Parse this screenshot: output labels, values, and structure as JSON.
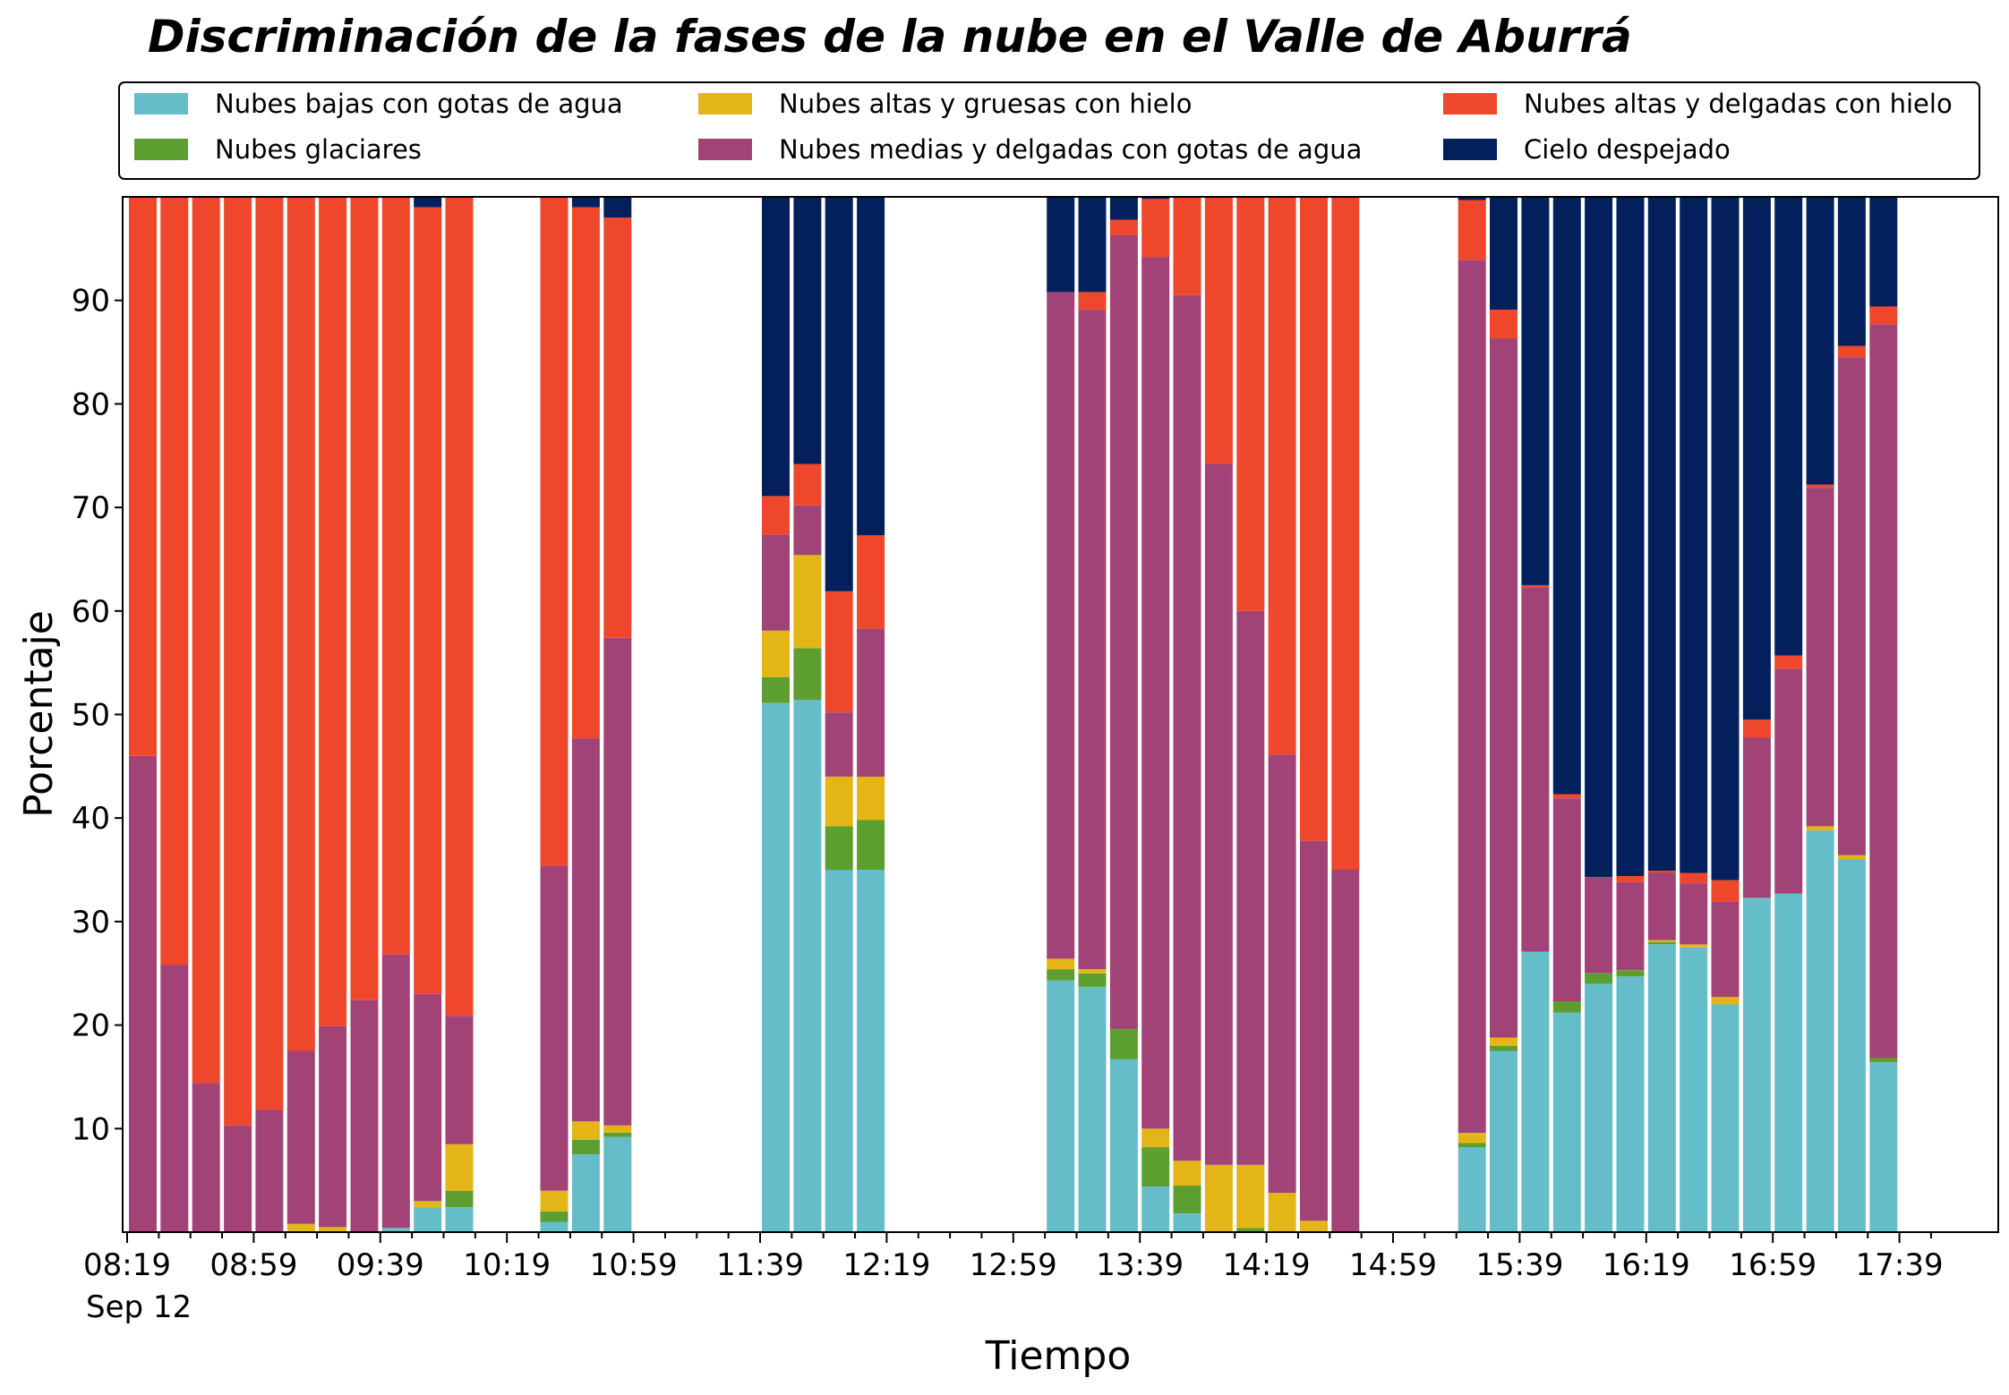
{
  "chart_data": {
    "type": "bar",
    "stacked": true,
    "title": "Discriminación de la fases de la nube en el Valle de Aburrá",
    "xlabel": "Tiempo",
    "ylabel": "Porcentaje",
    "ylim": [
      0,
      100
    ],
    "yticks": [
      10,
      20,
      30,
      40,
      50,
      60,
      70,
      80,
      90
    ],
    "xticklabels": [
      "08:19",
      "08:59",
      "09:39",
      "10:19",
      "10:59",
      "11:39",
      "12:19",
      "12:59",
      "13:39",
      "14:19",
      "14:59",
      "15:39",
      "16:19",
      "16:59",
      "17:39"
    ],
    "x_date_label": "Sep 12",
    "legend_position": "top",
    "grid": false,
    "series": [
      {
        "name": "Nubes bajas con gotas de agua",
        "color": "#65bdc9"
      },
      {
        "name": "Nubes glaciares",
        "color": "#5c9e2f"
      },
      {
        "name": "Nubes altas y gruesas con hielo",
        "color": "#e3b516"
      },
      {
        "name": "Nubes medias y delgadas con gotas de agua",
        "color": "#a24377"
      },
      {
        "name": "Nubes altas y delgadas con hielo",
        "color": "#ee472b"
      },
      {
        "name": "Cielo despejado",
        "color": "#04205c"
      }
    ],
    "x": [
      "08:19",
      "08:29",
      "08:39",
      "08:49",
      "08:59",
      "09:09",
      "09:19",
      "09:29",
      "09:39",
      "09:49",
      "09:59",
      "10:29",
      "10:39",
      "10:49",
      "11:39",
      "11:49",
      "11:59",
      "12:09",
      "13:09",
      "13:19",
      "13:29",
      "13:39",
      "13:49",
      "13:59",
      "14:09",
      "14:19",
      "14:29",
      "14:39",
      "15:19",
      "15:29",
      "15:39",
      "15:49",
      "15:59",
      "16:09",
      "16:19",
      "16:29",
      "16:39",
      "16:49",
      "16:59",
      "17:09",
      "17:19",
      "17:29"
    ],
    "values": [
      [
        0,
        0,
        0,
        46,
        54,
        0
      ],
      [
        0,
        0,
        0,
        25.8,
        74.2,
        0
      ],
      [
        0,
        0,
        0,
        14.4,
        85.6,
        0
      ],
      [
        0,
        0,
        0,
        10.3,
        89.7,
        0
      ],
      [
        0,
        0,
        0,
        11.8,
        88.2,
        0
      ],
      [
        0,
        0,
        0.8,
        16.7,
        82.5,
        0
      ],
      [
        0,
        0,
        0.5,
        19.4,
        80.1,
        0
      ],
      [
        0,
        0,
        0,
        22.4,
        77.6,
        0
      ],
      [
        0.4,
        0,
        0,
        26.4,
        73.2,
        0
      ],
      [
        2.4,
        0,
        0.6,
        20,
        76,
        1
      ],
      [
        2.4,
        1.6,
        4.5,
        12.4,
        79.1,
        0
      ],
      [
        1,
        1,
        2,
        31.4,
        64.6,
        0
      ],
      [
        7.5,
        1.4,
        1.8,
        37,
        51.3,
        1
      ],
      [
        9.2,
        0.4,
        0.7,
        47.1,
        40.6,
        2
      ],
      [
        51.1,
        2.5,
        4.5,
        9.3,
        3.7,
        28.9
      ],
      [
        51.4,
        5,
        9,
        4.8,
        4,
        25.8
      ],
      [
        35,
        4.2,
        4.8,
        6.2,
        11.7,
        38.1
      ],
      [
        35,
        4.8,
        4.2,
        14.3,
        9,
        32.7
      ],
      [
        24.3,
        1.1,
        1,
        64.4,
        0,
        9.2
      ],
      [
        23.7,
        1.3,
        0.4,
        63.7,
        1.7,
        9.2
      ],
      [
        16.7,
        2.9,
        0,
        76.7,
        1.5,
        2.2
      ],
      [
        4.4,
        3.8,
        1.8,
        84.2,
        5.6,
        0.2
      ],
      [
        1.8,
        2.7,
        2.4,
        83.6,
        9.5,
        0
      ],
      [
        0,
        0,
        6.5,
        67.7,
        25.8,
        0
      ],
      [
        0,
        0.4,
        6.1,
        53.5,
        40,
        0
      ],
      [
        0,
        0,
        3.8,
        42.3,
        53.9,
        0
      ],
      [
        0,
        0,
        1.1,
        36.7,
        62.2,
        0
      ],
      [
        0,
        0,
        0,
        35,
        65,
        0
      ],
      [
        8.2,
        0.4,
        1,
        84.3,
        5.8,
        0.3
      ],
      [
        17.5,
        0.5,
        0.8,
        67.5,
        2.8,
        10.9
      ],
      [
        27.1,
        0,
        0,
        35.2,
        0.2,
        37.5
      ],
      [
        21.2,
        1.1,
        0,
        19.6,
        0.4,
        57.7
      ],
      [
        24,
        1,
        0,
        9.3,
        0,
        65.7
      ],
      [
        24.7,
        0.6,
        0,
        8.5,
        0.6,
        65.6
      ],
      [
        27.8,
        0.2,
        0.2,
        6.5,
        0.2,
        65.1
      ],
      [
        27.5,
        0,
        0.3,
        5.9,
        1,
        65.3
      ],
      [
        22,
        0,
        0.7,
        9.2,
        2.1,
        66
      ],
      [
        32.3,
        0,
        0,
        15.5,
        1.7,
        50.5
      ],
      [
        32.7,
        0,
        0,
        21.7,
        1.3,
        44.3
      ],
      [
        38.8,
        0,
        0.4,
        32.7,
        0.3,
        27.8
      ],
      [
        36,
        0,
        0.4,
        48.1,
        1.1,
        14.4
      ],
      [
        16.4,
        0.4,
        0,
        70.9,
        1.7,
        10.6
      ]
    ]
  }
}
